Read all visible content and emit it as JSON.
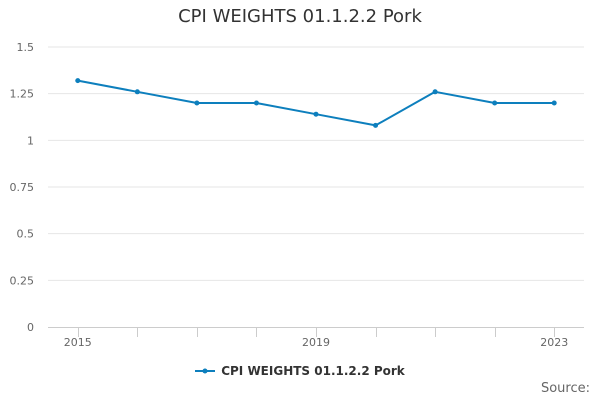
{
  "chart_data": {
    "type": "line",
    "title": "CPI WEIGHTS 01.1.2.2 Pork",
    "x": [
      2015,
      2016,
      2017,
      2018,
      2019,
      2020,
      2021,
      2022,
      2023
    ],
    "x_tick_labels": [
      {
        "x": 2015,
        "label": "2015"
      },
      {
        "x": 2019,
        "label": "2019"
      },
      {
        "x": 2023,
        "label": "2023"
      }
    ],
    "y_ticks": [
      0,
      0.25,
      0.5,
      0.75,
      1,
      1.25,
      1.5
    ],
    "y_tick_labels": [
      "0",
      "0.25",
      "0.5",
      "0.75",
      "1",
      "1.25",
      "1.5"
    ],
    "ylim": [
      0,
      1.5
    ],
    "xlim": [
      2014.5,
      2023.5
    ],
    "grid": true,
    "legend_position": "bottom",
    "series": [
      {
        "name": "CPI WEIGHTS 01.1.2.2 Pork",
        "color": "#0d7fbd",
        "values": [
          1.32,
          1.26,
          1.2,
          1.2,
          1.14,
          1.08,
          1.26,
          1.2,
          1.2
        ]
      }
    ],
    "credit": "Source:"
  }
}
